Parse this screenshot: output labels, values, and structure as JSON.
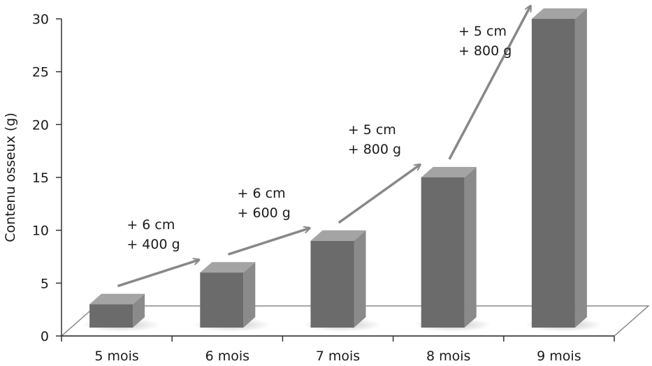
{
  "chart_data": {
    "type": "bar",
    "title": "",
    "xlabel": "",
    "ylabel": "Contenu osseux (g)",
    "ylim": [
      0,
      30
    ],
    "yticks": [
      "0",
      "5",
      "10",
      "15",
      "20",
      "25",
      "30"
    ],
    "categories": [
      "5 mois",
      "6 mois",
      "7 mois",
      "8 mois",
      "9 mois"
    ],
    "values": [
      3,
      6,
      9,
      15,
      30
    ],
    "grid": false,
    "annotations": [
      {
        "from": "5 mois",
        "to": "6 mois",
        "lines": [
          "+ 6 cm",
          "+ 400 g"
        ]
      },
      {
        "from": "6 mois",
        "to": "7 mois",
        "lines": [
          "+ 6 cm",
          "+ 600 g"
        ]
      },
      {
        "from": "7 mois",
        "to": "8 mois",
        "lines": [
          "+ 5 cm",
          "+ 800 g"
        ]
      },
      {
        "from": "8 mois",
        "to": "9 mois",
        "lines": [
          "+ 5 cm",
          "+ 800 g"
        ]
      }
    ],
    "colors": {
      "bar_front": "#6b6b6b",
      "bar_side": "#8a8a8a",
      "bar_top": "#a4a4a4",
      "arrow": "#888888",
      "floor": "#ffffff",
      "floor_edge": "#8c8c8c",
      "axis": "#333333"
    }
  }
}
